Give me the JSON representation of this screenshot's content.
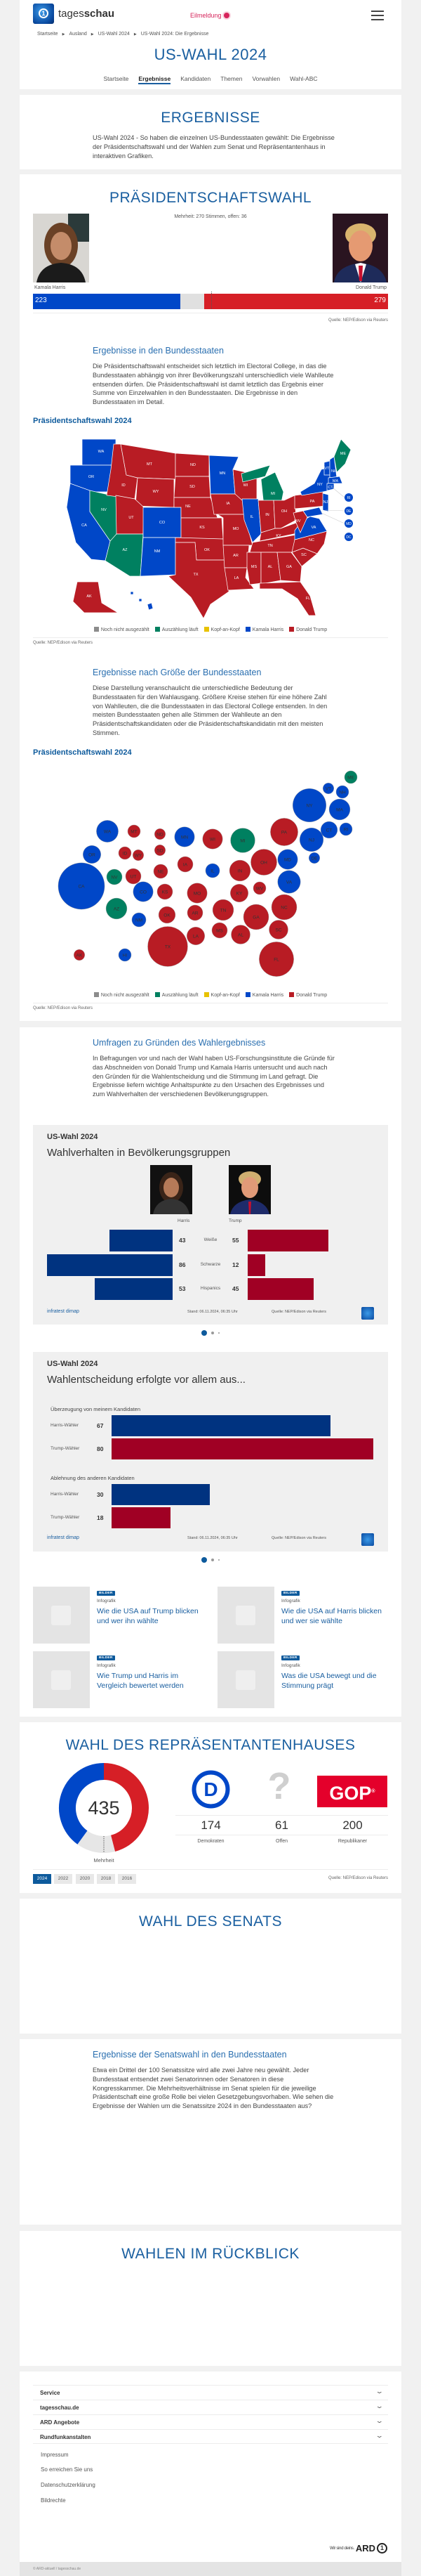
{
  "header": {
    "logo_text_light": "tages",
    "logo_text_bold": "schau",
    "breaking": "Eilmeldung",
    "breadcrumb": [
      "Startseite",
      "Ausland",
      "US-Wahl 2024",
      "US-Wahl 2024: Die Ergebnisse"
    ],
    "title": "US-WAHL 2024",
    "tabs": [
      "Startseite",
      "Ergebnisse",
      "Kandidaten",
      "Themen",
      "Vorwahlen",
      "Wahl-ABC"
    ],
    "active_tab": "Ergebnisse"
  },
  "ergebnisse": {
    "heading": "ERGEBNISSE",
    "intro": "US-Wahl 2024 - So haben die einzelnen US-Bundesstaaten gewählt: Die Ergebnisse der Präsidentschaftswahl und der Wahlen zum Senat und Repräsentantenhaus in interaktiven Grafiken."
  },
  "president": {
    "heading": "PRÄSIDENTSCHAFTSWAHL",
    "majority_text": "Mehrheit: 270 Stimmen, offen: 36",
    "total": 538,
    "majority": 270,
    "candidates": [
      {
        "name": "Kamala Harris",
        "votes": 223,
        "color": "#0047c8"
      },
      {
        "name": "Donald Trump",
        "votes": 279,
        "color": "#d61f26"
      }
    ],
    "open": 36,
    "source": "Quelle: NEP/Edison via Reuters",
    "states_section": {
      "heading": "Ergebnisse in den Bundesstaaten",
      "text": "Die Präsidentschaftswahl entscheidet sich letztlich im Electoral College, in das die Bundesstaaten abhängig von ihrer Bevölkerungszahl unterschiedlich viele Wahlleute entsenden dürfen. Die Präsidentschaftswahl ist damit letztlich das Ergebnis einer Summe von Einzelwahlen in den Bundesstaaten. Die Ergebnisse in den Bundesstaaten im Detail."
    },
    "map_title": "Präsidentschaftswahl 2024",
    "size_section": {
      "heading": "Ergebnisse nach Größe der Bundesstaaten",
      "text": "Diese Darstellung veranschaulicht die unterschiedliche Bedeutung der Bundesstaaten für den Wahlausgang. Größere Kreise stehen für eine höhere Zahl von Wahlleuten, die die Bundesstaaten in das Electoral College entsenden. In den meisten Bundesstaaten gehen alle Stimmen der Wahlleute an den Präsidentschaftskandidaten oder die Präsidentschaftskandidatin mit den meisten Stimmen."
    },
    "bubble_title": "Präsidentschaftswahl 2024",
    "legend": [
      {
        "key": "none",
        "label": "Noch nicht ausgezählt",
        "color": "#8c8c8c"
      },
      {
        "key": "count",
        "label": "Auszählung läuft",
        "color": "#008060"
      },
      {
        "key": "tie",
        "label": "Kopf-an-Kopf",
        "color": "#e8c200"
      },
      {
        "key": "dem",
        "label": "Kamala Harris",
        "color": "#0047c8"
      },
      {
        "key": "rep",
        "label": "Donald Trump",
        "color": "#b81c24"
      }
    ]
  },
  "chart_data": [
    {
      "type": "map",
      "title": "Präsidentschaftswahl 2024",
      "states": {
        "WA": "dem",
        "OR": "dem",
        "CA": "dem",
        "NV": "count",
        "ID": "rep",
        "MT": "rep",
        "WY": "rep",
        "UT": "rep",
        "AZ": "count",
        "CO": "dem",
        "NM": "dem",
        "ND": "rep",
        "SD": "rep",
        "NE": "rep",
        "KS": "rep",
        "OK": "rep",
        "TX": "rep",
        "MN": "dem",
        "IA": "rep",
        "MO": "rep",
        "AR": "rep",
        "LA": "rep",
        "WI": "rep",
        "IL": "dem",
        "MI": "count",
        "IN": "rep",
        "OH": "rep",
        "KY": "rep",
        "TN": "rep",
        "MS": "rep",
        "AL": "rep",
        "GA": "rep",
        "FL": "rep",
        "SC": "rep",
        "NC": "rep",
        "VA": "dem",
        "WV": "rep",
        "PA": "rep",
        "NY": "dem",
        "VT": "dem",
        "NH": "dem",
        "ME": "count",
        "MA": "dem",
        "CT": "dem",
        "NJ": "dem",
        "AK": "rep",
        "HI": "dem",
        "RI": "dem",
        "DE": "dem",
        "MD": "dem",
        "DC": "dem"
      }
    },
    {
      "type": "bubble",
      "title": "Präsidentschaftswahl 2024",
      "electoral_votes": {
        "CA": 54,
        "WA": 12,
        "OR": 8,
        "NV": 6,
        "AZ": 11,
        "MT": 4,
        "ID": 4,
        "WY": 3,
        "UT": 6,
        "CO": 10,
        "NM": 5,
        "ND": 3,
        "SD": 3,
        "NE": 5,
        "KS": 6,
        "OK": 7,
        "TX": 40,
        "MN": 10,
        "IA": 6,
        "MO": 10,
        "AR": 6,
        "LA": 8,
        "WI": 10,
        "IL": 5,
        "MI": 15,
        "IN": 11,
        "OH": 17,
        "KY": 8,
        "WV": 4,
        "TN": 11,
        "MS": 6,
        "AL": 9,
        "GA": 16,
        "FL": 30,
        "SC": 9,
        "NC": 16,
        "VA": 13,
        "MD": 10,
        "DE": 3,
        "PA": 19,
        "NJ": 14,
        "NY": 28,
        "CT": 7,
        "RI": 4,
        "MA": 11,
        "VT": 3,
        "NH": 4,
        "ME": 4,
        "AK": 3,
        "HI": 4
      }
    },
    {
      "type": "bar",
      "title": "US-Wahl 2024",
      "subtitle": "Wahlverhalten in Bevölkerungsgruppen",
      "categories": [
        "Weiße",
        "Schwarze",
        "Hispanics"
      ],
      "series": [
        {
          "name": "Harris",
          "values": [
            43,
            86,
            53
          ]
        },
        {
          "name": "Trump",
          "values": [
            55,
            12,
            45
          ]
        }
      ]
    },
    {
      "type": "bar",
      "title": "US-Wahl 2024",
      "subtitle": "Wahlentscheidung erfolgte vor allem aus...",
      "groups": [
        {
          "label": "Überzeugung von meinem Kandidaten",
          "rows": [
            {
              "name": "Harris-Wähler",
              "value": 67
            },
            {
              "name": "Trump-Wähler",
              "value": 80
            }
          ]
        },
        {
          "label": "Ablehnung des anderen Kandidaten",
          "rows": [
            {
              "name": "Harris-Wähler",
              "value": 30
            },
            {
              "name": "Trump-Wähler",
              "value": 18
            }
          ]
        }
      ]
    },
    {
      "type": "pie",
      "total": 435,
      "values": [
        {
          "name": "Demokraten",
          "value": 174
        },
        {
          "name": "Offen",
          "value": 61
        },
        {
          "name": "Republikaner",
          "value": 200
        }
      ]
    }
  ],
  "surveys": {
    "heading": "Umfragen zu Gründen des Wahlergebnisses",
    "text": "In Befragungen vor und nach der Wahl haben US-Forschungsinstitute die Gründe für das Abschneiden von Donald Trump und Kamala Harris untersucht und auch nach den Gründen für die Wahlentscheidung und die Stimmung im Land gefragt. Die Ergebnisse liefern wichtige Anhaltspunkte zu den Ursachen des Ergebnisses und zum Wahlverhalten der verschiedenen Bevölkerungsgruppen.",
    "chart1": {
      "kicker": "US-Wahl 2024",
      "title": "Wahlverhalten in Bevölkerungsgruppen",
      "col_harris": "Harris",
      "col_trump": "Trump",
      "rows": [
        {
          "group": "Weiße",
          "harris": 43,
          "trump": 55
        },
        {
          "group": "Schwarze",
          "harris": 86,
          "trump": 12
        },
        {
          "group": "Hispanics",
          "harris": 53,
          "trump": 45
        }
      ]
    },
    "chart2": {
      "kicker": "US-Wahl 2024",
      "title": "Wahlentscheidung erfolgte vor allem aus...",
      "groups": [
        {
          "label": "Überzeugung von meinem Kandidaten",
          "rows": [
            {
              "name": "Harris-Wähler",
              "value": 67
            },
            {
              "name": "Trump-Wähler",
              "value": 80
            }
          ]
        },
        {
          "label": "Ablehnung des anderen Kandidaten",
          "rows": [
            {
              "name": "Harris-Wähler",
              "value": 30
            },
            {
              "name": "Trump-Wähler",
              "value": 18
            }
          ]
        }
      ]
    },
    "brand": "infratest dimap",
    "stand": "Stand:  06.11.2024, 06:35 Uhr",
    "source": "Quelle: NEP/Edison via Reuters",
    "carousel": {
      "count": 3,
      "active": 0
    },
    "colors": {
      "harris": "#003380",
      "trump": "#a00024"
    },
    "teasers": [
      {
        "badge": "BILDER",
        "kicker": "Infografik",
        "title": "Wie die USA auf Trump blicken und wer ihn wählte"
      },
      {
        "badge": "BILDER",
        "kicker": "Infografik",
        "title": "Wie die USA auf Harris blicken und wer sie wählte"
      },
      {
        "badge": "BILDER",
        "kicker": "Infografik",
        "title": "Wie Trump und Harris im Vergleich bewertet werden"
      },
      {
        "badge": "BILDER",
        "kicker": "Infografik",
        "title": "Was die USA bewegt und die Stimmung prägt"
      }
    ]
  },
  "house": {
    "heading": "WAHL DES REPRÄSENTANTENHAUSES",
    "total": "435",
    "majority_label": "Mehrheit",
    "parties": [
      {
        "name": "Demokraten",
        "seats": "174",
        "logo": "D"
      },
      {
        "name": "Offen",
        "seats": "61",
        "logo": "?"
      },
      {
        "name": "Republikaner",
        "seats": "200",
        "logo": "GOP"
      }
    ],
    "years": [
      "2024",
      "2022",
      "2020",
      "2018",
      "2016"
    ],
    "active_year": "2024",
    "source": "Quelle: NEP/Edison via Reuters"
  },
  "senate": {
    "heading": "WAHL DES SENATS",
    "states_heading": "Ergebnisse der Senatswahl in den Bundesstaaten",
    "states_text": "Etwa ein Drittel der 100 Senatssitze wird alle zwei Jahre neu gewählt. Jeder Bundesstaat entsendet zwei Senatorinnen oder Senatoren in diese Kongresskammer. Die Mehrheitsverhältnisse im Senat spielen für die jeweilige Präsidentschaft eine große Rolle bei vielen Gesetzgebungsvorhaben. Wie sehen die Ergebnisse der Wahlen um die Senatssitze 2024 in den Bundesstaaten aus?"
  },
  "review": {
    "heading": "WAHLEN IM RÜCKBLICK"
  },
  "footer": {
    "accordion": [
      "Service",
      "tagesschau.de",
      "ARD Angebote",
      "Rundfunkanstalten"
    ],
    "links": [
      "Impressum",
      "So erreichen Sie uns",
      "Datenschutzerklärung",
      "Bildrechte"
    ],
    "slogan": "Wir sind deins.",
    "ard": "ARD",
    "copyright": "© ARD-aktuell / tagesschau.de"
  }
}
